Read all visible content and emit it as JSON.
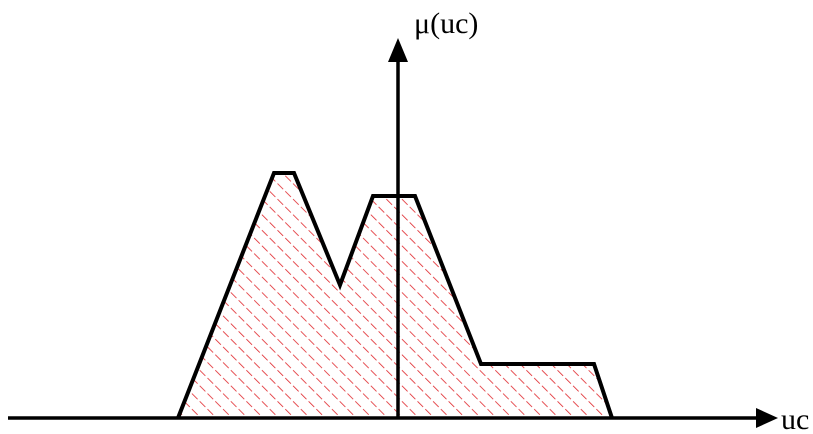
{
  "labels": {
    "y_axis": "μ(uc)",
    "x_axis": "uc"
  },
  "colors": {
    "outline": "#000000",
    "hatch": "#e0262b",
    "axis": "#000000",
    "background": "#ffffff"
  },
  "hatch_style": "diagonal red hatching fills the region under the membership curve"
}
